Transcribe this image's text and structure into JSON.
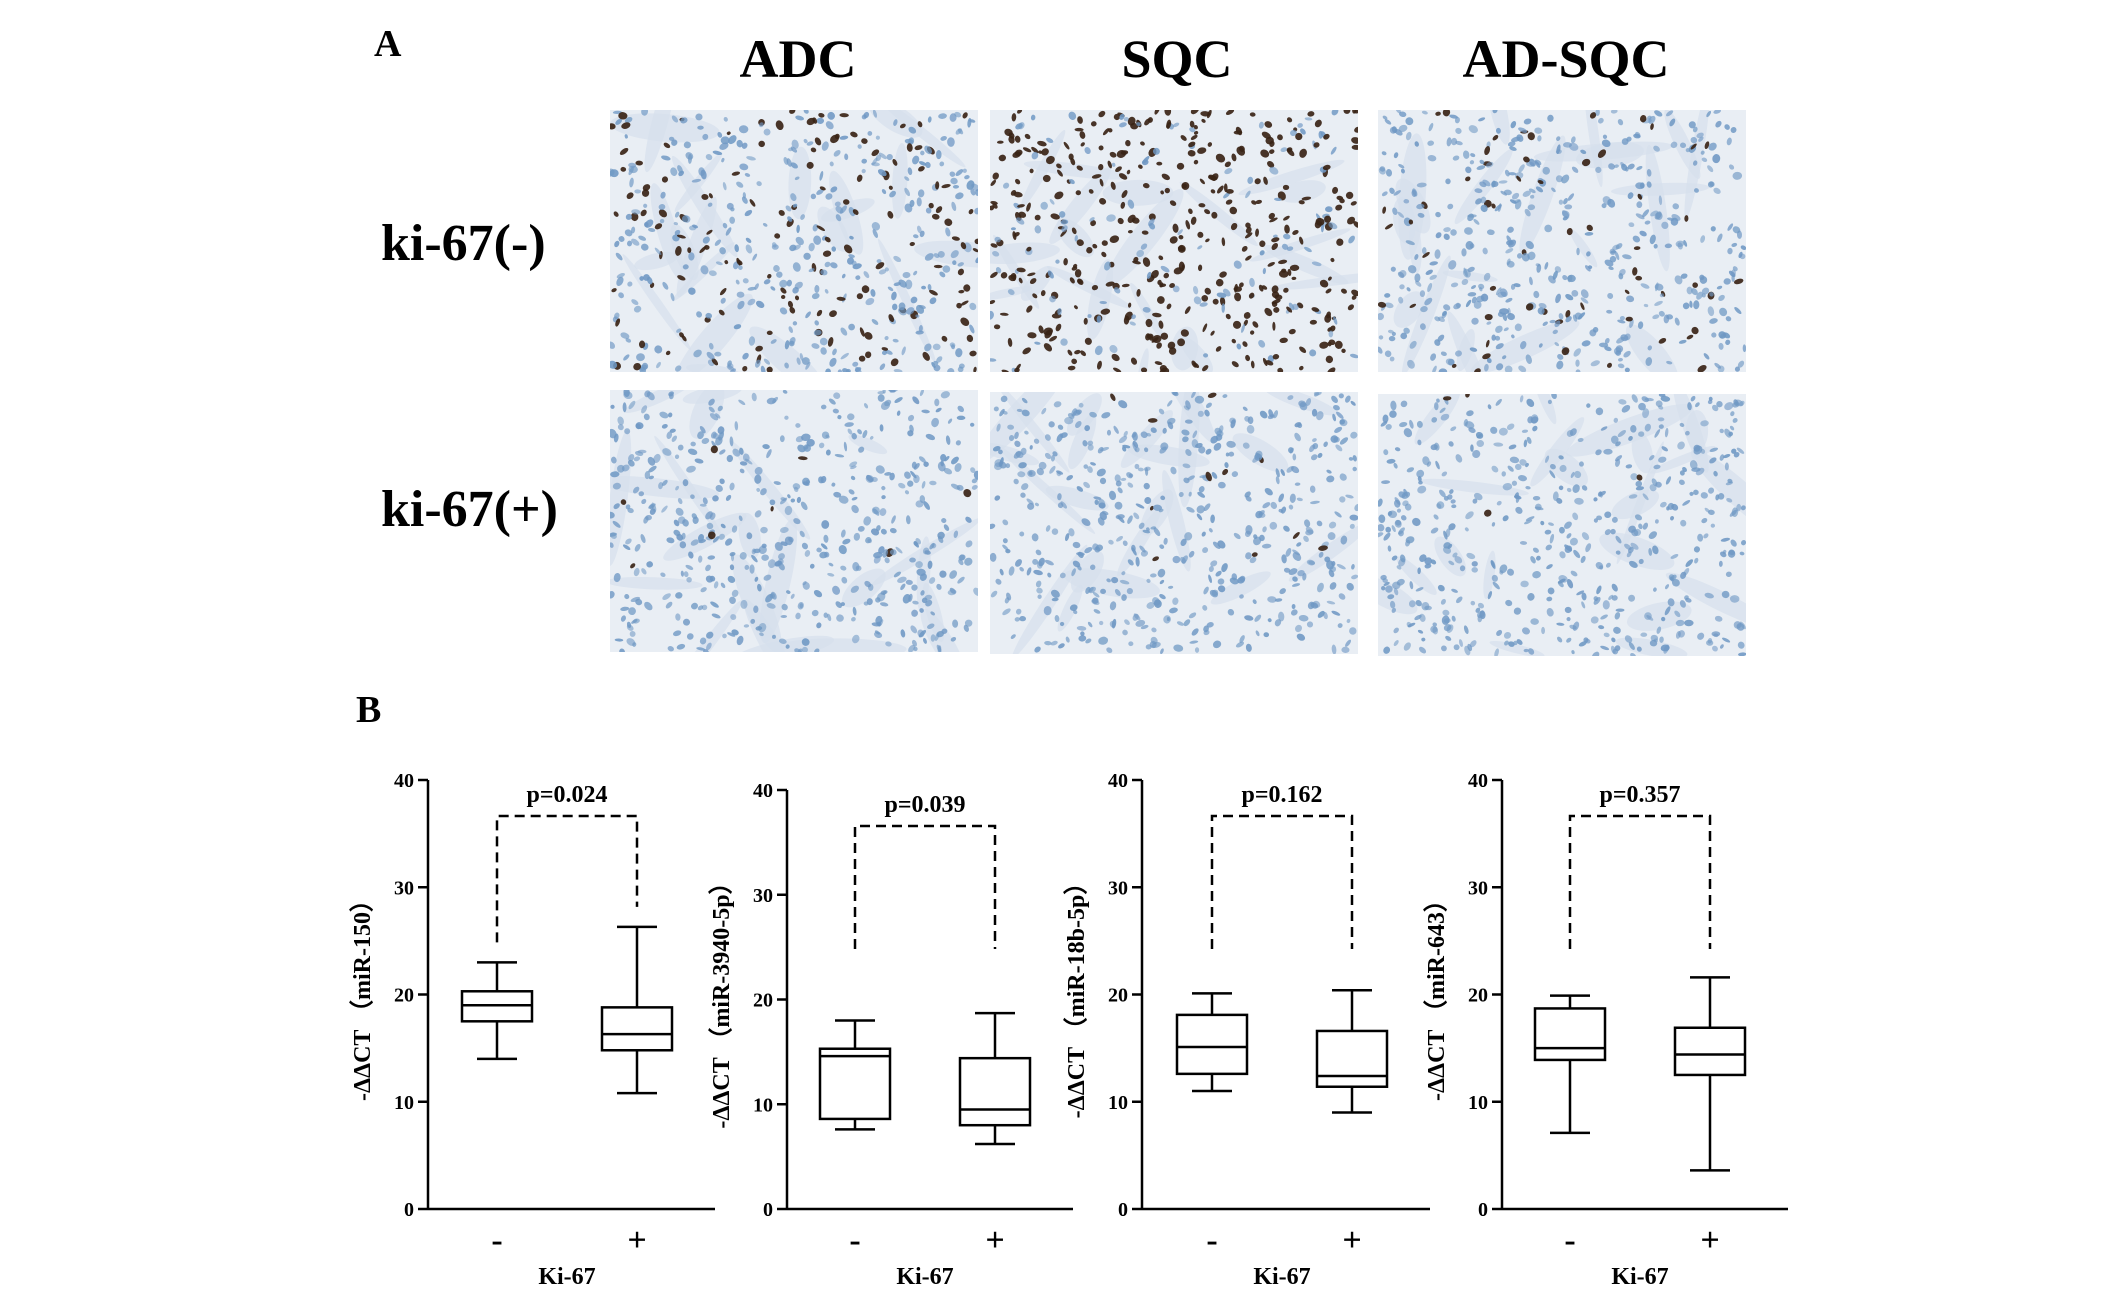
{
  "panel_a": {
    "letter": "A",
    "columns": [
      "ADC",
      "SQC",
      "AD-SQC"
    ],
    "rows": [
      "ki-67(-)",
      "ki-67(+)"
    ]
  },
  "panel_b": {
    "letter": "B"
  },
  "colors": {
    "tissue_bg": "#e9eef4",
    "hematoxylin": "#6f98c4",
    "dab_brown": "#3a2416"
  },
  "chart_data": [
    {
      "type": "box",
      "ylabel": "-ΔΔCT （miR-150）",
      "xlabel": "Ki-67",
      "categories": [
        "-",
        "+"
      ],
      "ylim": [
        0,
        40
      ],
      "yticks": [
        "0",
        "10",
        "20",
        "30",
        "40"
      ],
      "p_label": "p=0.024",
      "boxes": [
        {
          "min": 14.0,
          "q1": 17.5,
          "median": 19.0,
          "q3": 20.3,
          "max": 23.0
        },
        {
          "min": 10.8,
          "q1": 14.8,
          "median": 16.3,
          "q3": 18.8,
          "max": 26.3
        }
      ]
    },
    {
      "type": "box",
      "ylabel": "-ΔΔCT （miR-3940-5p）",
      "xlabel": "Ki-67",
      "categories": [
        "-",
        "+"
      ],
      "ylim": [
        0,
        40
      ],
      "yticks": [
        "0",
        "10",
        "20",
        "30",
        "40"
      ],
      "p_label": "p=0.039",
      "boxes": [
        {
          "min": 7.6,
          "q1": 8.6,
          "median": 14.6,
          "q3": 15.3,
          "max": 18.0
        },
        {
          "min": 6.2,
          "q1": 8.0,
          "median": 9.5,
          "q3": 14.4,
          "max": 18.7
        }
      ]
    },
    {
      "type": "box",
      "ylabel": "-ΔΔCT （miR-18b-5p）",
      "xlabel": "Ki-67",
      "categories": [
        "-",
        "+"
      ],
      "ylim": [
        0,
        40
      ],
      "yticks": [
        "0",
        "10",
        "20",
        "30",
        "40"
      ],
      "p_label": "p=0.162",
      "boxes": [
        {
          "min": 11.0,
          "q1": 12.6,
          "median": 15.1,
          "q3": 18.1,
          "max": 20.1
        },
        {
          "min": 9.0,
          "q1": 11.4,
          "median": 12.4,
          "q3": 16.6,
          "max": 20.4
        }
      ]
    },
    {
      "type": "box",
      "ylabel": "-ΔΔCT （miR-643）",
      "xlabel": "Ki-67",
      "categories": [
        "-",
        "+"
      ],
      "ylim": [
        0,
        40
      ],
      "yticks": [
        "0",
        "10",
        "20",
        "30",
        "40"
      ],
      "p_label": "p=0.357",
      "boxes": [
        {
          "min": 7.1,
          "q1": 13.9,
          "median": 15.0,
          "q3": 18.7,
          "max": 19.9
        },
        {
          "min": 3.6,
          "q1": 12.5,
          "median": 14.4,
          "q3": 16.9,
          "max": 21.6
        }
      ]
    }
  ]
}
